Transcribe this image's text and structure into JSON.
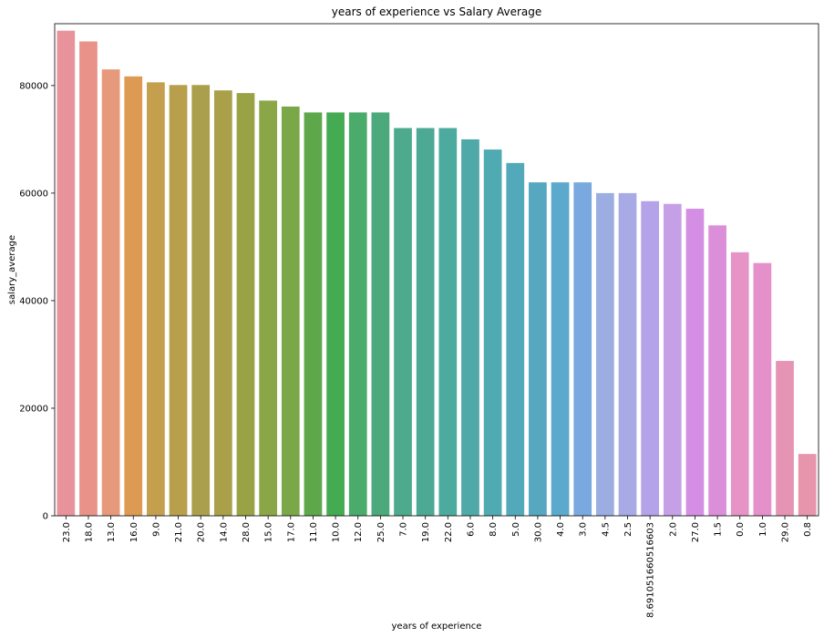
{
  "chart_data": {
    "type": "bar",
    "title": "years of experience vs Salary Average",
    "xlabel": "years of experience",
    "ylabel": "salary_average",
    "ylim": [
      0,
      91500
    ],
    "yticks": [
      0,
      20000,
      40000,
      60000,
      80000
    ],
    "grid": false,
    "categories": [
      "23.0",
      "18.0",
      "13.0",
      "16.0",
      "9.0",
      "21.0",
      "20.0",
      "14.0",
      "28.0",
      "15.0",
      "17.0",
      "11.0",
      "10.0",
      "12.0",
      "25.0",
      "7.0",
      "19.0",
      "22.0",
      "6.0",
      "8.0",
      "5.0",
      "30.0",
      "4.0",
      "3.0",
      "4.5",
      "2.5",
      "8.691051660516603",
      "2.0",
      "27.0",
      "1.5",
      "0.0",
      "1.0",
      "29.0",
      "0.8"
    ],
    "values": [
      90200,
      88200,
      83000,
      81700,
      80600,
      80100,
      80100,
      79100,
      78600,
      77200,
      76100,
      75000,
      75000,
      75000,
      75000,
      72100,
      72100,
      72100,
      70000,
      68100,
      65600,
      62000,
      62000,
      62000,
      60000,
      60000,
      58500,
      58000,
      57100,
      54000,
      49000,
      47000,
      28800,
      11500
    ],
    "colors": [
      "#e8939b",
      "#e8928a",
      "#e7997b",
      "#dd9a52",
      "#c49f4e",
      "#b89f4c",
      "#aaa04b",
      "#a9a049",
      "#99a346",
      "#8aa646",
      "#7aa848",
      "#5ea84b",
      "#45ab52",
      "#4aab6a",
      "#4ca97c",
      "#4eaa8c",
      "#4ca994",
      "#4daa9e",
      "#4fa9a8",
      "#4faab1",
      "#52a9ba",
      "#56a7c0",
      "#5ba9cc",
      "#79a9de",
      "#9caee1",
      "#a8aae6",
      "#b4a3e8",
      "#c6a0e7",
      "#d48fe4",
      "#dc8fd9",
      "#e594c5",
      "#e590ca",
      "#e694b4",
      "#e795ad"
    ]
  }
}
